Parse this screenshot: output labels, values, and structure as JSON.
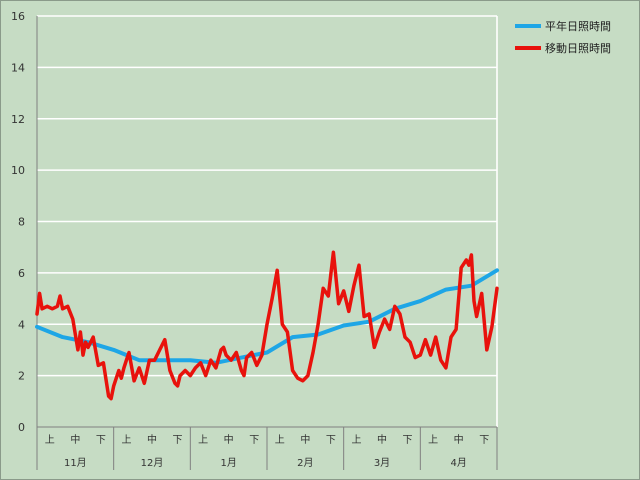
{
  "chart_data": {
    "type": "line",
    "title": "",
    "xlabel": "",
    "ylabel": "",
    "ylim": [
      0,
      16
    ],
    "yticks": [
      0,
      2,
      4,
      6,
      8,
      10,
      12,
      14,
      16
    ],
    "grid": true,
    "legend_position": "top-right",
    "months": [
      "11月",
      "12月",
      "1月",
      "2月",
      "3月",
      "4月"
    ],
    "sub_periods": [
      "上",
      "中",
      "下"
    ],
    "colors": {
      "plot_bg": "#c6dcc4",
      "grid": "#ffffff",
      "series1": "#1ea6e6",
      "series2": "#e8120c"
    },
    "series": [
      {
        "name": "平年日照時間",
        "x_day": [
          0,
          10,
          20,
          30,
          40,
          50,
          60,
          70,
          80,
          90,
          100,
          110,
          120,
          130,
          140,
          150,
          160,
          170,
          180
        ],
        "values": [
          3.9,
          3.5,
          3.3,
          3.0,
          2.6,
          2.6,
          2.6,
          2.5,
          2.7,
          2.9,
          3.5,
          3.6,
          3.95,
          4.1,
          4.6,
          4.9,
          5.35,
          5.5,
          6.1
        ]
      },
      {
        "name": "移動日照時間",
        "x_day": [
          0,
          1,
          2,
          4,
          6,
          8,
          9,
          10,
          12,
          14,
          16,
          17,
          18,
          19,
          20,
          22,
          24,
          26,
          28,
          29,
          30,
          32,
          33,
          34,
          35,
          36,
          38,
          40,
          42,
          44,
          46,
          48,
          50,
          52,
          54,
          55,
          56,
          58,
          60,
          62,
          64,
          66,
          68,
          70,
          72,
          73,
          74,
          76,
          78,
          80,
          81,
          82,
          84,
          86,
          88,
          90,
          92,
          94,
          96,
          98,
          100,
          102,
          104,
          106,
          108,
          110,
          112,
          114,
          116,
          118,
          120,
          122,
          124,
          126,
          128,
          130,
          132,
          134,
          136,
          138,
          140,
          142,
          144,
          146,
          148,
          150,
          152,
          154,
          156,
          158,
          160,
          162,
          164,
          166,
          168,
          169,
          170,
          171,
          172,
          174,
          176,
          178,
          180
        ],
        "values": [
          4.4,
          5.2,
          4.6,
          4.7,
          4.6,
          4.7,
          5.1,
          4.6,
          4.7,
          4.2,
          3.0,
          3.7,
          2.8,
          3.3,
          3.1,
          3.5,
          2.4,
          2.5,
          1.2,
          1.1,
          1.6,
          2.2,
          1.9,
          2.3,
          2.6,
          2.9,
          1.8,
          2.3,
          1.7,
          2.6,
          2.6,
          3.0,
          3.4,
          2.2,
          1.7,
          1.6,
          2.0,
          2.2,
          2.0,
          2.3,
          2.5,
          2.0,
          2.6,
          2.3,
          3.0,
          3.1,
          2.8,
          2.6,
          2.9,
          2.2,
          2.0,
          2.7,
          2.9,
          2.4,
          2.8,
          4.0,
          5.0,
          6.1,
          4.0,
          3.7,
          2.2,
          1.9,
          1.8,
          2.0,
          2.9,
          4.0,
          5.4,
          5.1,
          6.8,
          4.8,
          5.3,
          4.5,
          5.5,
          6.3,
          4.3,
          4.4,
          3.1,
          3.7,
          4.2,
          3.8,
          4.7,
          4.4,
          3.5,
          3.3,
          2.7,
          2.8,
          3.4,
          2.8,
          3.5,
          2.6,
          2.3,
          3.5,
          3.8,
          6.2,
          6.5,
          6.3,
          6.7,
          4.9,
          4.3,
          5.2,
          3.0,
          3.9,
          5.4
        ]
      }
    ]
  }
}
